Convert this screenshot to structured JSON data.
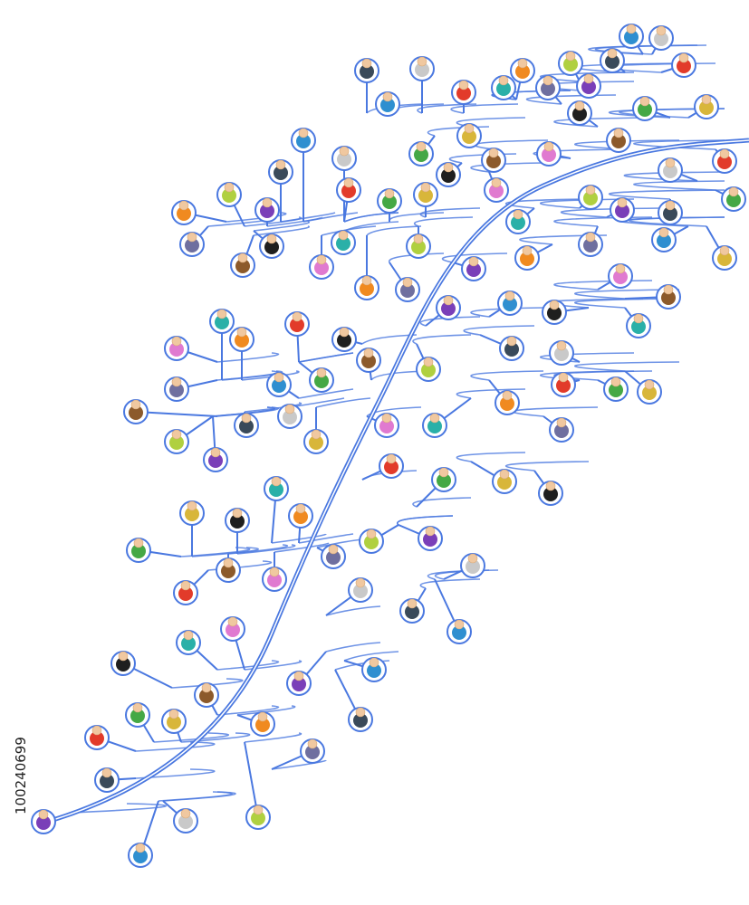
{
  "image_id": "100240699"
}
